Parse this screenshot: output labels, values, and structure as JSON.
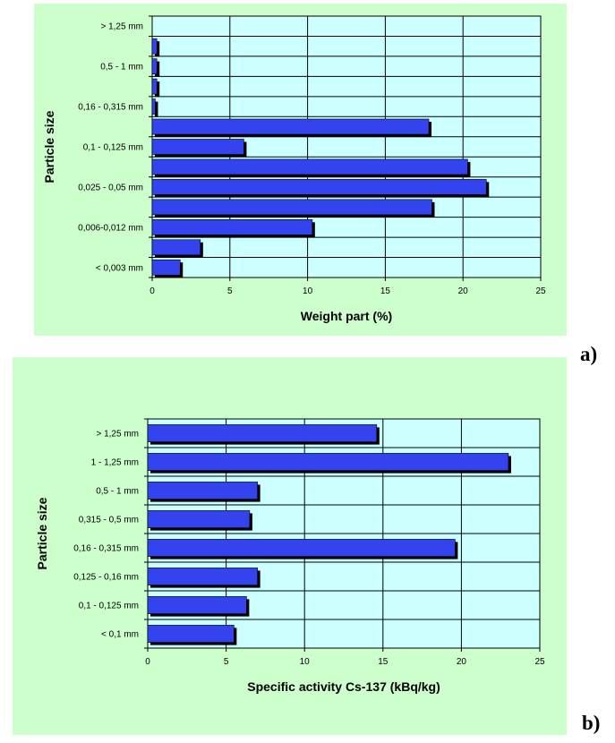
{
  "figure": {
    "label_a": "a)",
    "label_b": "b)"
  },
  "colors": {
    "panel_bg": "#ccffcc",
    "plot_bg": "#ccffff",
    "bar": "#3344ee",
    "shadow": "#000000",
    "grid": "#000000"
  },
  "chart_data": [
    {
      "type": "bar",
      "orientation": "horizontal",
      "title": "",
      "xlabel": "Weight part (%)",
      "ylabel": "Particle size",
      "xlim": [
        0,
        25
      ],
      "xticks": [
        0,
        5,
        10,
        15,
        20,
        25
      ],
      "grid": true,
      "legend": "none",
      "categories": [
        "< 0,003 mm",
        "",
        "0,006-0,012 mm",
        "",
        "0,025 - 0,05 mm",
        "",
        "0,1 - 0,125 mm",
        "",
        "0,16 - 0,315 mm",
        "",
        "0,5 - 1 mm",
        "",
        "> 1,25 mm"
      ],
      "bars": [
        [
          1.8
        ],
        [
          3.1
        ],
        [
          10.3
        ],
        [
          18.0
        ],
        [
          21.5
        ],
        [
          20.3
        ],
        [
          5.9
        ],
        [
          17.8
        ],
        [
          0.2
        ],
        [
          0.3
        ],
        [
          0.3
        ],
        [
          0.3
        ],
        [
          0.0
        ]
      ]
    },
    {
      "type": "bar",
      "orientation": "horizontal",
      "title": "",
      "xlabel": "Specific activity Cs-137 (kBq/kg)",
      "ylabel": "Particle size",
      "xlim": [
        0,
        25
      ],
      "xticks": [
        0,
        5,
        10,
        15,
        20,
        25
      ],
      "grid": true,
      "legend": "none",
      "categories": [
        "< 0,1 mm",
        "0,1 - 0,125 mm",
        "0,125 - 0,16 mm",
        "0,16 - 0,315 mm",
        "0,315 - 0,5 mm",
        "0,5 - 1 mm",
        "1 - 1,25 mm",
        "> 1,25 mm"
      ],
      "values": [
        5.5,
        6.3,
        7.0,
        19.6,
        6.5,
        7.0,
        23.0,
        14.6
      ]
    }
  ]
}
